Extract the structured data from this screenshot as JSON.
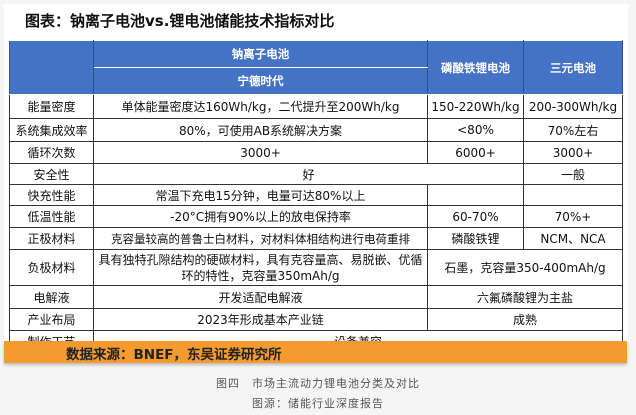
{
  "title": "图表：钠离子电池vs.锂电池储能技术指标对比",
  "header": {
    "sodium": "钠离子电池",
    "sodium_sub": "宁德时代",
    "lfp": "磷酸铁锂电池",
    "ternary": "三元电池"
  },
  "rows": {
    "energy": {
      "label": "能量密度",
      "sodium": "单体能量密度达160Wh/kg，二代提升至200Wh/kg",
      "lfp": "150-220Wh/kg",
      "ternary": "200-300Wh/kg"
    },
    "system": {
      "label": "系统集成效率",
      "sodium": "80%，可使用AB系统解决方案",
      "lfp": "<80%",
      "ternary": "70%左右"
    },
    "cycle": {
      "label": "循环次数",
      "sodium": "3000+",
      "lfp": "6000+",
      "ternary": "3000+"
    },
    "safety": {
      "label": "安全性",
      "sodium_lfp": "好",
      "ternary": "一般"
    },
    "fast": {
      "label": "快充性能",
      "sodium": "常温下充电15分钟，电量可达80%以上",
      "lfp": "",
      "ternary": ""
    },
    "low_temp": {
      "label": "低温性能",
      "sodium": "-20°C拥有90%以上的放电保持率",
      "lfp": "60-70%",
      "ternary": "70%+"
    },
    "cathode": {
      "label": "正极材料",
      "sodium": "克容量较高的普鲁士白材料，对材料体相结构进行电荷重排",
      "lfp": "磷酸铁锂",
      "ternary": "NCM、NCA"
    },
    "anode": {
      "label": "负极材料",
      "sodium": "具有独特孔隙结构的硬碳材料，具有克容量高、易脱嵌、优循环的特性，克容量350mAh/g",
      "lithium": "石墨，克容量350-400mAh/g"
    },
    "electrolyte": {
      "label": "电解液",
      "sodium": "开发适配电解液",
      "lithium": "六氟磷酸锂为主盐"
    },
    "industry": {
      "label": "产业布局",
      "sodium": "2023年形成基本产业链",
      "lithium": "成熟"
    },
    "process": {
      "label": "制作工艺",
      "all": "设备兼容"
    }
  },
  "source": "数据来源：BNEF，东吴证券研究所",
  "caption": "图四　市场主流动力锂电池分类及对比",
  "caption_source": "图源：储能行业深度报告",
  "colors": {
    "header_blue": "#4472c4",
    "band_orange": "#f59a2e"
  }
}
